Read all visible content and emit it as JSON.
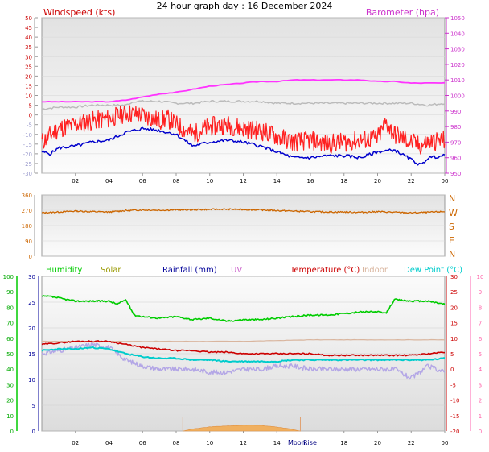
{
  "title": "24 hour graph day : 16 December 2024",
  "colors": {
    "windspeed": "#cc0000",
    "barometer": "#cc33cc",
    "gust": "#ff2020",
    "avg": "#0000cc",
    "baro_line": "#ff33ff",
    "dir": "#cc6600",
    "humidity": "#00cc00",
    "solar": "#999900",
    "rainfall": "#000099",
    "uv": "#cc66cc",
    "temperature": "#cc0000",
    "indoor": "#d9b59e",
    "dewpoint": "#00cccc"
  },
  "chart_data": [
    {
      "type": "line",
      "legend": {
        "left": "Windspeed (kts)",
        "right": "Barometer (hpa)"
      },
      "yleft": {
        "ticks": [
          "50",
          "45",
          "40",
          "35",
          "30",
          "25",
          "20",
          "15",
          "10",
          "5",
          "0",
          "-5",
          "-10",
          "-15",
          "-20",
          "-25",
          "-30"
        ],
        "range": [
          -30,
          50
        ]
      },
      "yright": {
        "ticks": [
          "1050",
          "1040",
          "1030",
          "1020",
          "1010",
          "1000",
          "990",
          "980",
          "970",
          "960",
          "950"
        ],
        "range": [
          950,
          1050
        ]
      },
      "x_ticks": [
        "02",
        "04",
        "06",
        "08",
        "10",
        "12",
        "14",
        "16",
        "18",
        "20",
        "22",
        "00"
      ],
      "x_range": [
        0,
        24
      ],
      "series": [
        {
          "key": "gust",
          "axis": "left",
          "x": [
            0,
            1,
            2,
            3,
            4,
            5,
            6,
            7,
            7.5,
            8,
            9,
            10,
            11,
            12,
            13,
            14,
            15,
            16,
            17,
            18,
            19,
            20,
            20.5,
            21,
            22,
            22.5,
            23,
            24
          ],
          "y": [
            -14,
            -7,
            -5,
            -3,
            -2,
            1,
            0,
            -3,
            -2,
            -5,
            -10,
            -6,
            -5,
            -7,
            -8,
            -11,
            -14,
            -13,
            -15,
            -14,
            -13,
            -12,
            -4,
            -10,
            -14,
            -16,
            -14,
            -13
          ]
        },
        {
          "key": "avg",
          "axis": "left",
          "x": [
            0,
            0.5,
            1,
            2,
            3,
            4,
            4.5,
            5,
            6,
            7,
            8,
            9,
            10,
            11,
            12,
            13,
            14,
            15,
            16,
            17,
            18,
            19,
            20,
            21,
            22,
            22.6,
            23,
            24
          ],
          "y": [
            -19,
            -20,
            -17,
            -16,
            -14,
            -13,
            -11,
            -9,
            -7,
            -8,
            -10,
            -16,
            -14,
            -13,
            -14,
            -16,
            -19,
            -22,
            -22,
            -21,
            -21,
            -22,
            -19,
            -18,
            -23,
            -26,
            -22,
            -21
          ]
        },
        {
          "key": "temp",
          "axis": "left",
          "x": [
            0,
            1,
            2,
            3,
            4,
            5,
            5.5,
            6,
            7,
            8,
            9,
            10,
            11,
            12,
            13,
            14,
            15,
            16,
            17,
            18,
            19,
            20,
            21,
            22,
            23,
            24
          ],
          "y": [
            3,
            4,
            4,
            5,
            5,
            5,
            7,
            7,
            7,
            6,
            6,
            7,
            7,
            7,
            7,
            6,
            6,
            6,
            6,
            6,
            6,
            6,
            6,
            6,
            5,
            6
          ]
        },
        {
          "key": "baro",
          "axis": "right",
          "x": [
            0,
            1,
            2,
            3,
            4,
            5,
            6,
            7,
            8,
            9,
            10,
            11,
            12,
            13,
            14,
            15,
            16,
            17,
            18,
            19,
            20,
            21,
            22,
            23,
            24
          ],
          "y": [
            996,
            996,
            996,
            996,
            996,
            997,
            999,
            1001,
            1002,
            1004,
            1006,
            1007,
            1008,
            1009,
            1009,
            1010,
            1010,
            1010,
            1010,
            1010,
            1009,
            1009,
            1008,
            1008,
            1008
          ]
        }
      ]
    },
    {
      "type": "line",
      "yleft": {
        "ticks": [
          "360",
          "270",
          "180",
          "90",
          "0"
        ],
        "range": [
          0,
          360
        ]
      },
      "yright": {
        "ticks": [
          "N",
          "W",
          "S",
          "E",
          "N"
        ]
      },
      "series": [
        {
          "key": "direction",
          "x": [
            0,
            1,
            2,
            3,
            4,
            5,
            6,
            7,
            8,
            9,
            10,
            11,
            12,
            13,
            14,
            15,
            16,
            17,
            18,
            19,
            20,
            21,
            22,
            23,
            24
          ],
          "y": [
            255,
            260,
            265,
            262,
            260,
            268,
            272,
            270,
            272,
            273,
            275,
            276,
            274,
            272,
            268,
            265,
            262,
            260,
            260,
            258,
            262,
            258,
            255,
            258,
            262
          ]
        }
      ]
    },
    {
      "type": "line",
      "legend": [
        "Humidity",
        "Solar",
        "Rainfall (mm)",
        "UV",
        "Temperature (°C)",
        "Indoor",
        "Dew Point (°C)"
      ],
      "y_humidity": {
        "ticks": [
          "100",
          "90",
          "80",
          "70",
          "60",
          "50",
          "40",
          "30",
          "20",
          "10",
          "0"
        ],
        "range": [
          0,
          100
        ]
      },
      "y_rain": {
        "ticks": [
          "30",
          "25",
          "20",
          "15",
          "10",
          "5",
          "0"
        ],
        "range": [
          0,
          30
        ]
      },
      "y_temp": {
        "ticks": [
          "30",
          "25",
          "20",
          "15",
          "10",
          "5",
          "0",
          "-5",
          "-10",
          "-15",
          "-20"
        ],
        "range": [
          -20,
          30
        ]
      },
      "y_uv": {
        "ticks": [
          "10",
          "9",
          "8",
          "7",
          "6",
          "5",
          "4",
          "3",
          "2",
          "1",
          "0"
        ],
        "range": [
          0,
          10
        ]
      },
      "x_ticks": [
        "02",
        "04",
        "06",
        "08",
        "10",
        "12",
        "14",
        "16",
        "18",
        "20",
        "22",
        "00"
      ],
      "moon_label": "Moon",
      "rise_label": "Rise",
      "series": [
        {
          "key": "humidity",
          "x": [
            0,
            0.5,
            1,
            2,
            3,
            4,
            4.5,
            5,
            5.5,
            6,
            7,
            8,
            9,
            10,
            11,
            12,
            13,
            14,
            15,
            16,
            17,
            18,
            19,
            20,
            20.5,
            21,
            22,
            23,
            24
          ],
          "y": [
            87,
            87,
            86,
            84,
            84,
            84,
            82,
            85,
            75,
            74,
            73,
            74,
            72,
            73,
            71,
            72,
            72,
            73,
            74,
            75,
            75,
            76,
            77,
            77,
            76,
            85,
            84,
            84,
            82
          ]
        },
        {
          "key": "temperature",
          "x": [
            0,
            1,
            2,
            3,
            4,
            5,
            6,
            7,
            8,
            9,
            10,
            11,
            12,
            13,
            14,
            15,
            16,
            17,
            18,
            19,
            20,
            21,
            22,
            23,
            24
          ],
          "y": [
            8,
            8.5,
            9,
            9,
            9,
            8,
            7,
            6.5,
            6,
            6,
            5.5,
            5.5,
            5,
            5,
            5,
            5,
            5,
            4.5,
            4.5,
            4.5,
            4.5,
            4.5,
            4.5,
            5,
            5.5
          ]
        },
        {
          "key": "indoor",
          "x": [
            0,
            8,
            12,
            16,
            20,
            24
          ],
          "y": [
            9,
            9,
            9,
            9.5,
            9.5,
            9.5
          ]
        },
        {
          "key": "dewpoint",
          "x": [
            0,
            1,
            2,
            3,
            4,
            5,
            6,
            7,
            8,
            9,
            10,
            11,
            12,
            13,
            14,
            15,
            16,
            17,
            18,
            19,
            20,
            21,
            22,
            23,
            24
          ],
          "y": [
            6,
            6.5,
            6.5,
            7,
            6.5,
            5,
            4,
            3.5,
            3.5,
            3,
            3,
            2.5,
            2.5,
            2.5,
            2.5,
            3,
            3,
            3,
            3,
            3,
            3,
            3,
            3,
            3,
            3.5
          ]
        },
        {
          "key": "uv",
          "x": [
            0,
            1,
            2,
            3,
            4,
            5,
            6,
            7,
            8,
            9,
            10,
            11,
            12,
            13,
            14,
            15,
            16,
            17,
            18,
            19,
            20,
            21,
            22,
            23,
            24
          ],
          "y": [
            5,
            5.2,
            5.4,
            5.6,
            5.4,
            4.6,
            4.2,
            4,
            4,
            4,
            3.8,
            3.8,
            4,
            4,
            4.2,
            4.2,
            4,
            4,
            4,
            4,
            4,
            4,
            3.4,
            4.2,
            3.8
          ]
        },
        {
          "key": "solar",
          "x": [
            8.4,
            9,
            10,
            11,
            12,
            13,
            14,
            14.8,
            15.4
          ],
          "y": [
            0,
            0.4,
            0.8,
            1,
            1.1,
            1.1,
            0.8,
            0.4,
            0
          ]
        }
      ]
    }
  ]
}
